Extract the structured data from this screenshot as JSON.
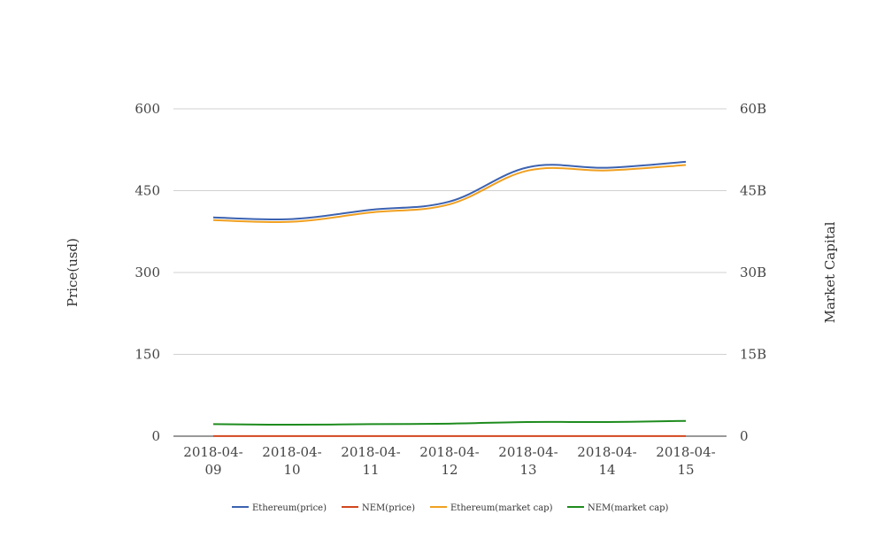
{
  "chart_data": {
    "type": "line",
    "categories": [
      "2018-04-09",
      "2018-04-10",
      "2018-04-11",
      "2018-04-12",
      "2018-04-13",
      "2018-04-14",
      "2018-04-15"
    ],
    "category_lines": [
      [
        "2018-04-",
        "09"
      ],
      [
        "2018-04-",
        "10"
      ],
      [
        "2018-04-",
        "11"
      ],
      [
        "2018-04-",
        "12"
      ],
      [
        "2018-04-",
        "13"
      ],
      [
        "2018-04-",
        "14"
      ],
      [
        "2018-04-",
        "15"
      ]
    ],
    "ylabel_left": "Price(usd)",
    "ylabel_right": "Market Capital",
    "ylim_left": [
      0,
      600
    ],
    "ylim_right": [
      0,
      60000000000
    ],
    "yticks_left": [
      {
        "value": 0,
        "label": "0"
      },
      {
        "value": 150,
        "label": "150"
      },
      {
        "value": 300,
        "label": "300"
      },
      {
        "value": 450,
        "label": "450"
      },
      {
        "value": 600,
        "label": "600"
      }
    ],
    "yticks_right": [
      {
        "value": 0,
        "label": "0"
      },
      {
        "value": 15000000000,
        "label": "15B"
      },
      {
        "value": 30000000000,
        "label": "30B"
      },
      {
        "value": 45000000000,
        "label": "45B"
      },
      {
        "value": 60000000000,
        "label": "60B"
      }
    ],
    "grid": true,
    "legend_position": "bottom",
    "series": [
      {
        "name": "Ethereum(price)",
        "axis": "left",
        "color": "#3c62b0",
        "values": [
          401,
          398,
          415,
          430,
          493,
          492,
          503
        ]
      },
      {
        "name": "NEM(price)",
        "axis": "left",
        "color": "#d2471e",
        "values": [
          0.24,
          0.23,
          0.24,
          0.25,
          0.27,
          0.28,
          0.3
        ]
      },
      {
        "name": "Ethereum(market cap)",
        "axis": "right",
        "color": "#f0a020",
        "values": [
          39600000000,
          39300000000,
          41000000000,
          42500000000,
          48700000000,
          48700000000,
          49700000000
        ]
      },
      {
        "name": "NEM(market cap)",
        "axis": "right",
        "color": "#1e8c1e",
        "values": [
          2200000000,
          2100000000,
          2200000000,
          2300000000,
          2600000000,
          2600000000,
          2800000000
        ]
      }
    ]
  }
}
